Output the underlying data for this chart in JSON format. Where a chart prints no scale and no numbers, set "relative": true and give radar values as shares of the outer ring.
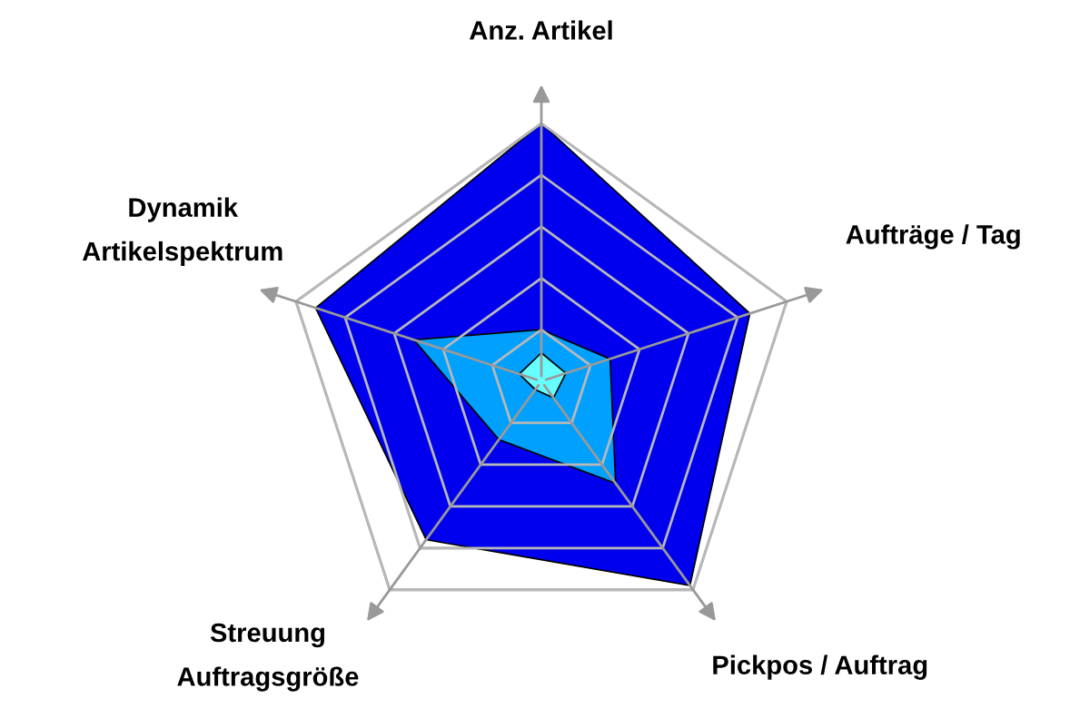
{
  "chart_data": {
    "type": "radar",
    "relative": true,
    "grid": true,
    "categories": [
      "Anz. Artikel",
      "Aufträge / Tag",
      "Pickpos / Auftrag",
      "Streuung\nAuftragsgröße",
      "Dynamik\nArtikelspektrum"
    ],
    "series": [
      {
        "color": "#0000ee",
        "values": [
          1.0,
          0.85,
          0.98,
          0.76,
          0.92
        ]
      },
      {
        "color": "#00a0ff",
        "values": [
          0.2,
          0.28,
          0.49,
          0.28,
          0.52
        ]
      },
      {
        "color": "#66ffff",
        "values": [
          0.11,
          0.1,
          0.08,
          0.04,
          0.09
        ]
      }
    ]
  }
}
